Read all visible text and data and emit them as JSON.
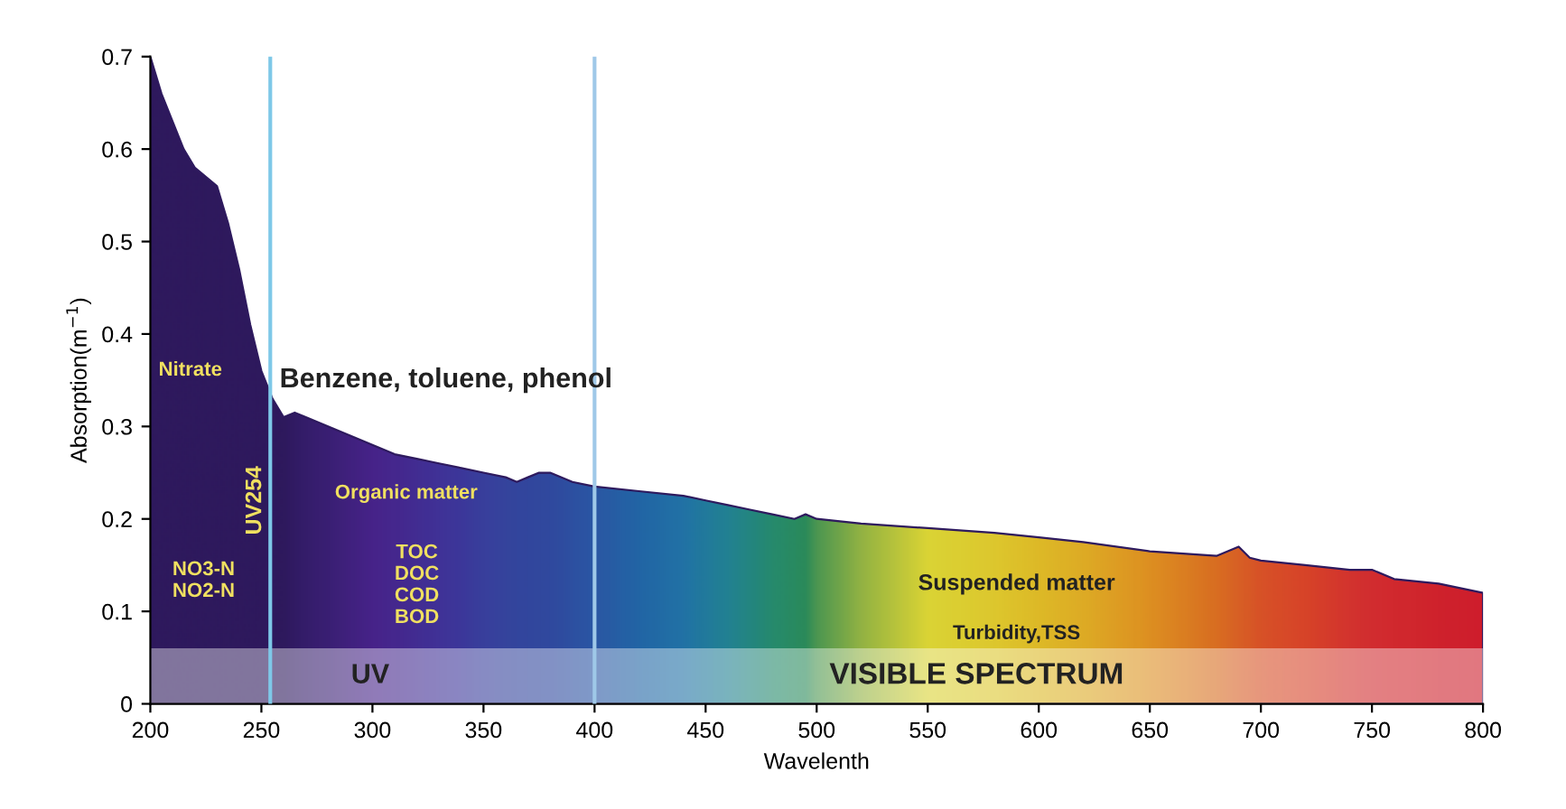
{
  "chart_data": {
    "type": "area",
    "xlabel": "Wavelenth",
    "ylabel": "Absorption(m$^{−1}$)",
    "x": [
      200,
      205,
      210,
      215,
      220,
      225,
      230,
      235,
      240,
      245,
      250,
      255,
      260,
      265,
      270,
      280,
      290,
      300,
      310,
      320,
      330,
      340,
      350,
      360,
      365,
      370,
      375,
      380,
      390,
      400,
      420,
      440,
      450,
      460,
      470,
      480,
      490,
      495,
      500,
      520,
      550,
      580,
      600,
      620,
      650,
      680,
      690,
      695,
      700,
      720,
      740,
      750,
      760,
      780,
      800
    ],
    "series": [
      {
        "color": "#2e1a5e",
        "colors": [
          "#2e1a5e",
          "#2e1a5e",
          "#2e1a5e",
          "#2e1a5e",
          "#2e1a5e",
          "#2e1a5e",
          "#2e1a5e",
          "#2e1a5e",
          "#2e1a5e",
          "#2e1a5e",
          "#2e1a5e",
          "#2e1a5e",
          "#2e1a5e",
          "#321c66",
          "#361e6e",
          "#3c2078",
          "#432384",
          "#4a2590",
          "#482a95",
          "#45309a",
          "#4236a0",
          "#3e3ca3",
          "#3a45a5",
          "#364aa6",
          "#344ca7",
          "#334da7",
          "#314fa8",
          "#3050a8",
          "#2d58ab",
          "#2a60ae",
          "#2070b0",
          "#1f7fb0",
          "#1f88a5",
          "#20909a",
          "#229585",
          "#259a70",
          "#289a62",
          "#2a9a5a",
          "#50a850",
          "#a0c840",
          "#f2ee30",
          "#f5e028",
          "#f5d020",
          "#f5c01e",
          "#f5a01a",
          "#f07a1a",
          "#ee6a1e",
          "#ee621f",
          "#ee5a20",
          "#ee4a22",
          "#ea3828",
          "#e8302a",
          "#e72c28",
          "#e52426",
          "#e41e26"
        ],
        "values": [
          0.7,
          0.66,
          0.63,
          0.6,
          0.58,
          0.57,
          0.56,
          0.52,
          0.47,
          0.41,
          0.36,
          0.33,
          0.31,
          0.315,
          0.31,
          0.3,
          0.29,
          0.28,
          0.27,
          0.265,
          0.26,
          0.255,
          0.25,
          0.245,
          0.24,
          0.245,
          0.25,
          0.25,
          0.24,
          0.235,
          0.23,
          0.225,
          0.22,
          0.215,
          0.21,
          0.205,
          0.2,
          0.205,
          0.2,
          0.195,
          0.19,
          0.185,
          0.18,
          0.175,
          0.165,
          0.16,
          0.17,
          0.158,
          0.155,
          0.15,
          0.145,
          0.145,
          0.135,
          0.13,
          0.12
        ]
      }
    ],
    "xlim": [
      200,
      800
    ],
    "xticks": [
      200,
      250,
      300,
      350,
      400,
      450,
      500,
      550,
      600,
      650,
      700,
      750,
      800
    ],
    "ylim": [
      0,
      0.7
    ],
    "yticks": [
      0,
      0.1,
      0.2,
      0.3,
      0.4,
      0.5,
      0.6,
      0.7
    ],
    "ref_lines": [
      {
        "axis": "x",
        "value": 254,
        "label": "UV254",
        "color": "#7ec8e8"
      },
      {
        "axis": "x",
        "value": 400,
        "label": null,
        "color": "#9fc8e8"
      }
    ],
    "bands": [
      {
        "axis": "y",
        "from": 0,
        "to": 0.06,
        "label": null,
        "color": "#ffffff"
      }
    ],
    "annotations": [
      "Nitrate",
      "Benzene, toluene, phenol",
      "Organic matter",
      "NO3-N\nNO2-N",
      "TOC\nDOC\nCOD\nBOD",
      "Suspended matter",
      "Turbidity,TSS",
      "UV",
      "VISIBLE SPECTRUM"
    ],
    "grid": false,
    "legend": false
  }
}
